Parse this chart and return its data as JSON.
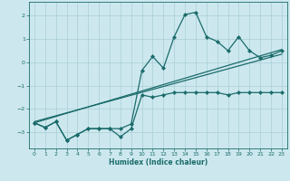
{
  "xlabel": "Humidex (Indice chaleur)",
  "background_color": "#cce8ee",
  "grid_color": "#aacdd6",
  "line_color": "#1a6b6b",
  "xlim": [
    -0.5,
    23.5
  ],
  "ylim": [
    -3.7,
    2.6
  ],
  "yticks": [
    -3,
    -2,
    -1,
    0,
    1,
    2
  ],
  "xticks": [
    0,
    1,
    2,
    3,
    4,
    5,
    6,
    7,
    8,
    9,
    10,
    11,
    12,
    13,
    14,
    15,
    16,
    17,
    18,
    19,
    20,
    21,
    22,
    23
  ],
  "s1x": [
    0,
    1,
    2,
    3,
    4,
    5,
    6,
    7,
    8,
    9,
    10,
    11,
    12,
    13,
    14,
    15,
    16,
    17,
    18,
    19,
    20,
    21,
    22,
    23
  ],
  "s1y": [
    -2.6,
    -2.8,
    -2.55,
    -3.35,
    -3.1,
    -2.85,
    -2.85,
    -2.85,
    -2.85,
    -2.65,
    -0.35,
    0.25,
    -0.25,
    1.1,
    2.05,
    2.15,
    1.1,
    0.9,
    0.5,
    1.1,
    0.5,
    0.2,
    0.3,
    0.5
  ],
  "s2x": [
    0,
    1,
    2,
    3,
    4,
    5,
    6,
    7,
    8,
    9,
    10,
    11,
    12,
    13,
    14,
    15,
    16,
    17,
    18,
    19,
    20,
    21,
    22,
    23
  ],
  "s2y": [
    -2.6,
    -2.8,
    -2.55,
    -3.35,
    -3.1,
    -2.85,
    -2.85,
    -2.85,
    -3.2,
    -2.85,
    -1.4,
    -1.5,
    -1.4,
    -1.3,
    -1.3,
    -1.3,
    -1.3,
    -1.3,
    -1.4,
    -1.3,
    -1.3,
    -1.3,
    -1.3,
    -1.3
  ],
  "s3x": [
    0,
    23
  ],
  "s3y": [
    -2.6,
    0.55
  ],
  "s4x": [
    0,
    23
  ],
  "s4y": [
    -2.55,
    0.35
  ]
}
